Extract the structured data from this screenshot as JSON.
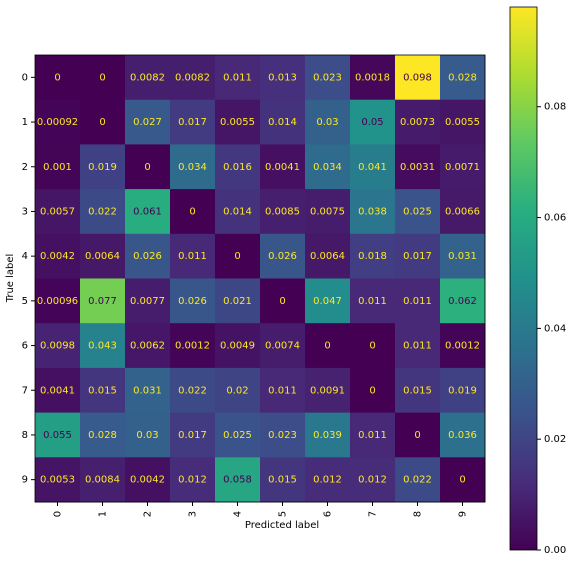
{
  "chart_data": {
    "type": "heatmap",
    "x_label": "Predicted label",
    "y_label": "True label",
    "x_categories": [
      "0",
      "1",
      "2",
      "3",
      "4",
      "5",
      "6",
      "7",
      "8",
      "9"
    ],
    "y_categories": [
      "0",
      "1",
      "2",
      "3",
      "4",
      "5",
      "6",
      "7",
      "8",
      "9"
    ],
    "colormap": "viridis",
    "values": [
      [
        0,
        0,
        0.0082,
        0.0082,
        0.011,
        0.013,
        0.023,
        0.0018,
        0.098,
        0.028
      ],
      [
        0.00092,
        0,
        0.027,
        0.017,
        0.0055,
        0.014,
        0.03,
        0.05,
        0.0073,
        0.0055
      ],
      [
        0.001,
        0.019,
        0,
        0.034,
        0.016,
        0.0041,
        0.034,
        0.041,
        0.0031,
        0.0071
      ],
      [
        0.0057,
        0.022,
        0.061,
        0,
        0.014,
        0.0085,
        0.0075,
        0.038,
        0.025,
        0.0066
      ],
      [
        0.0042,
        0.0064,
        0.026,
        0.011,
        0,
        0.026,
        0.0064,
        0.018,
        0.017,
        0.031
      ],
      [
        0.00096,
        0.077,
        0.0077,
        0.026,
        0.021,
        0,
        0.047,
        0.011,
        0.011,
        0.062
      ],
      [
        0.0098,
        0.043,
        0.0062,
        0.0012,
        0.0049,
        0.0074,
        0,
        0,
        0.011,
        0.0012
      ],
      [
        0.0041,
        0.015,
        0.031,
        0.022,
        0.02,
        0.011,
        0.0091,
        0,
        0.015,
        0.019
      ],
      [
        0.055,
        0.028,
        0.03,
        0.017,
        0.025,
        0.023,
        0.039,
        0.011,
        0,
        0.036
      ],
      [
        0.0053,
        0.0084,
        0.0042,
        0.012,
        0.058,
        0.015,
        0.012,
        0.012,
        0.022,
        0
      ]
    ],
    "colorbar_lim": [
      0,
      0.098
    ],
    "colorbar_ticks": [
      {
        "value": 0,
        "label": "0.00"
      },
      {
        "value": 0.02,
        "label": "0.02"
      },
      {
        "value": 0.04,
        "label": "0.04"
      },
      {
        "value": 0.06,
        "label": "0.06"
      },
      {
        "value": 0.08,
        "label": "0.08"
      }
    ]
  }
}
